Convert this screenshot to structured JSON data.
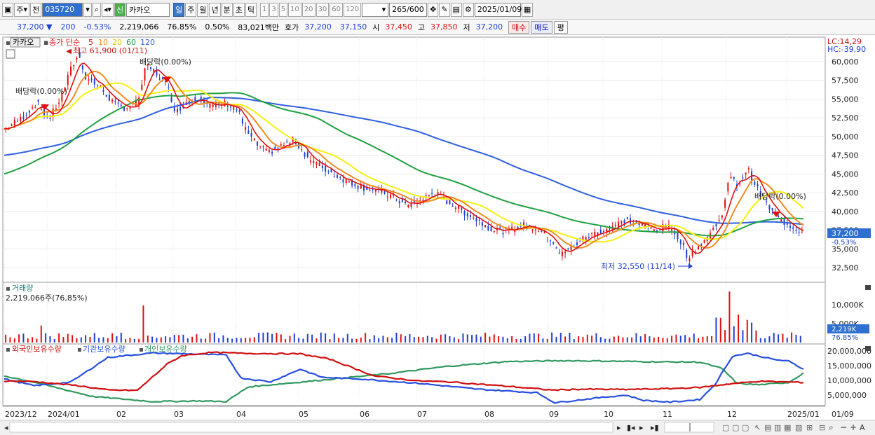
{
  "toolbar": {
    "market_label": "주",
    "type_label": "전",
    "code_value": "035720",
    "name_badge": "신",
    "name_value": "카카오",
    "period_tabs": [
      "일",
      "주",
      "월",
      "년",
      "분",
      "초",
      "틱"
    ],
    "active_period": "일",
    "interval_buttons": [
      "1",
      "3",
      "5",
      "10",
      "20",
      "30",
      "60",
      "120"
    ],
    "count_value": "265",
    "count_max": "/600",
    "date_value": "2025/01/09"
  },
  "quote": {
    "price": "37,200",
    "change": "200",
    "change_pct": "-0.53%",
    "volume": "2,219,066",
    "turnover_pct": "76.85%",
    "pct2": "0.50%",
    "amount": "83,021백만",
    "ask_label": "호가",
    "ask_price": "37,200",
    "bid_price": "37,150",
    "open_label": "시",
    "open": "37,450",
    "high_label": "고",
    "high": "37,850",
    "low_label": "저",
    "low": "37,200",
    "buy_button": "매수",
    "sell_button": "매도",
    "eval_button": "평"
  },
  "price_panel": {
    "title": "카카오",
    "legend": [
      "종가 단순",
      "5",
      "10",
      "20",
      "60",
      "120"
    ],
    "lc": "LC:14,29",
    "hc": "HC:-39,90",
    "annotations": {
      "high": "최고 61,900 (01/11)",
      "low": "최저 32,550 (11/14)",
      "div1": "배당락(0.00%)",
      "div2": "배당락(0.00%)",
      "div3": "배당락(0.00%)"
    },
    "y_ticks": [
      "60,000",
      "57,500",
      "55,000",
      "52,500",
      "50,000",
      "47,500",
      "45,000",
      "42,500",
      "40,000",
      "37,500",
      "35,000",
      "32,500"
    ],
    "last_price_label": "37,200",
    "last_change_label": "-0.53%"
  },
  "volume_panel": {
    "title": "거래량",
    "value": "2,219,066주(76,85%)",
    "y_ticks": [
      "10,000K",
      "5,000K"
    ],
    "last_label": "2,219K",
    "last_pct": "76.85%"
  },
  "holding_panel": {
    "legend": [
      "외국인보유수량",
      "기관보유수량",
      "개인보유수량"
    ],
    "y_ticks": [
      "20,000,000",
      "15,000,000",
      "10,000,000",
      "5,000,000"
    ]
  },
  "x_labels": [
    "2023/12",
    "2024/01",
    "02",
    "03",
    "04",
    "05",
    "06",
    "07",
    "08",
    "09",
    "10",
    "11",
    "12",
    "2025/01"
  ],
  "x_right_label": "01/09",
  "colors": {
    "ma5": "#e01010",
    "ma10": "#f08c20",
    "ma20": "#f4f010",
    "ma60": "#20a040",
    "ma120": "#3060e0",
    "up": "#e01010",
    "down": "#2040d0",
    "foreign": "#d01010",
    "inst": "#2850e0",
    "indiv": "#309a60"
  }
}
